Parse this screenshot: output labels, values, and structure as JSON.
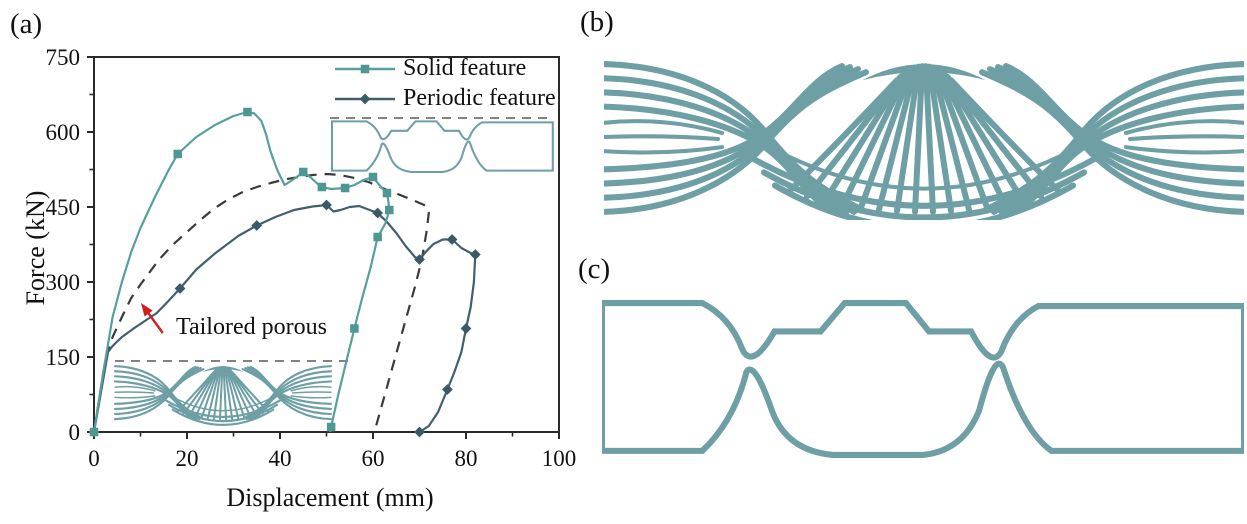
{
  "panels": {
    "a": {
      "label": "(a)"
    },
    "b": {
      "label": "(b)"
    },
    "c": {
      "label": "(c)"
    }
  },
  "colors": {
    "solid_line": "#55a09c",
    "solid_marker": "#4f9793",
    "periodic_line": "#40606d",
    "periodic_marker": "#3a5a67",
    "porous_dash": "#3b3b3b",
    "structure": "#6e9fa5",
    "arrow_red": "#cf1f1f",
    "axis": "#2a2a2a",
    "text": "#111111"
  },
  "chart_data": {
    "type": "line",
    "title": "",
    "xlabel": "Displacement (mm)",
    "ylabel": "Force (kN)",
    "xlim": [
      0,
      100
    ],
    "ylim": [
      0,
      750
    ],
    "x_ticks": [
      0,
      20,
      40,
      60,
      80,
      100
    ],
    "x_minor_ticks": [
      10,
      30,
      50,
      70,
      90
    ],
    "y_ticks": [
      0,
      150,
      300,
      450,
      600,
      750
    ],
    "y_minor_ticks": [
      75,
      225,
      375,
      525,
      675
    ],
    "grid": false,
    "legend_position": "top-right-inside",
    "series": [
      {
        "name": "Solid feature",
        "color": "#55a09c",
        "marker": "square",
        "marker_color": "#4f9793",
        "dashed": false,
        "points": [
          [
            0,
            0
          ],
          [
            2,
            120
          ],
          [
            4,
            230
          ],
          [
            6,
            300
          ],
          [
            8,
            360
          ],
          [
            10,
            408
          ],
          [
            13,
            468
          ],
          [
            16,
            523
          ],
          [
            18,
            556
          ],
          [
            22,
            590
          ],
          [
            26,
            614
          ],
          [
            30,
            632
          ],
          [
            33,
            640
          ],
          [
            34.5,
            637
          ],
          [
            36,
            622
          ],
          [
            37,
            595
          ],
          [
            38,
            560
          ],
          [
            39.5,
            522
          ],
          [
            41,
            494
          ],
          [
            43,
            506
          ],
          [
            45,
            520
          ],
          [
            46.5,
            510
          ],
          [
            48,
            497
          ],
          [
            49,
            490
          ],
          [
            51,
            486
          ],
          [
            54,
            488
          ],
          [
            56,
            494
          ],
          [
            58,
            504
          ],
          [
            60,
            510
          ],
          [
            61,
            498
          ],
          [
            62,
            487
          ],
          [
            63,
            478
          ],
          [
            63.3,
            462
          ],
          [
            63.5,
            444
          ],
          [
            62.7,
            418
          ],
          [
            61,
            390
          ],
          [
            59.5,
            330
          ],
          [
            57.5,
            262
          ],
          [
            56,
            207
          ],
          [
            54.5,
            150
          ],
          [
            52.5,
            73
          ],
          [
            51,
            10
          ],
          [
            50.8,
            0
          ]
        ],
        "marker_points": [
          [
            0,
            0
          ],
          [
            18,
            556
          ],
          [
            33,
            640
          ],
          [
            45,
            520
          ],
          [
            49,
            490
          ],
          [
            54,
            488
          ],
          [
            60,
            510
          ],
          [
            63,
            478
          ],
          [
            63.5,
            444
          ],
          [
            61,
            390
          ],
          [
            56,
            207
          ],
          [
            51,
            10
          ]
        ]
      },
      {
        "name": "Periodic feature",
        "color": "#40606d",
        "marker": "diamond",
        "marker_color": "#3a5a67",
        "dashed": false,
        "points": [
          [
            0,
            0
          ],
          [
            1.5,
            80
          ],
          [
            3,
            160
          ],
          [
            4,
            172
          ],
          [
            6,
            190
          ],
          [
            9,
            210
          ],
          [
            13.5,
            238
          ],
          [
            16,
            262
          ],
          [
            18.5,
            287
          ],
          [
            22,
            325
          ],
          [
            26,
            357
          ],
          [
            31,
            392
          ],
          [
            35,
            413
          ],
          [
            39,
            430
          ],
          [
            43,
            444
          ],
          [
            47,
            451
          ],
          [
            50,
            454
          ],
          [
            51.5,
            441
          ],
          [
            53,
            444
          ],
          [
            55,
            450
          ],
          [
            57,
            452
          ],
          [
            59,
            445
          ],
          [
            61,
            438
          ],
          [
            63,
            420
          ],
          [
            65,
            398
          ],
          [
            67,
            372
          ],
          [
            69,
            350
          ],
          [
            70,
            345
          ],
          [
            71.5,
            362
          ],
          [
            73,
            376
          ],
          [
            75,
            385
          ],
          [
            77,
            385
          ],
          [
            79,
            368
          ],
          [
            81,
            358
          ],
          [
            82,
            355
          ],
          [
            81.7,
            300
          ],
          [
            81,
            250
          ],
          [
            80,
            207
          ],
          [
            79,
            160
          ],
          [
            77.5,
            120
          ],
          [
            76,
            85
          ],
          [
            74,
            40
          ],
          [
            72,
            12
          ],
          [
            70,
            0
          ]
        ],
        "marker_points": [
          [
            0,
            0
          ],
          [
            18.5,
            287
          ],
          [
            35,
            413
          ],
          [
            50,
            454
          ],
          [
            61,
            438
          ],
          [
            70,
            345
          ],
          [
            77,
            385
          ],
          [
            82,
            355
          ],
          [
            80,
            207
          ],
          [
            76,
            85
          ],
          [
            70,
            0
          ]
        ]
      },
      {
        "name": "Tailored porous",
        "color": "#3b3b3b",
        "marker": "none",
        "marker_color": "#3b3b3b",
        "dashed": true,
        "in_legend": false,
        "points": [
          [
            0,
            0
          ],
          [
            1,
            60
          ],
          [
            2,
            120
          ],
          [
            3,
            160
          ],
          [
            4,
            190
          ],
          [
            6,
            230
          ],
          [
            8,
            268
          ],
          [
            10,
            295
          ],
          [
            12,
            320
          ],
          [
            14,
            345
          ],
          [
            17,
            375
          ],
          [
            20,
            400
          ],
          [
            23,
            425
          ],
          [
            26,
            448
          ],
          [
            29,
            466
          ],
          [
            32,
            480
          ],
          [
            35,
            490
          ],
          [
            38,
            498
          ],
          [
            41,
            505
          ],
          [
            44,
            510
          ],
          [
            47,
            514
          ],
          [
            50,
            516
          ],
          [
            53,
            514
          ],
          [
            56,
            508
          ],
          [
            59,
            500
          ],
          [
            62,
            488
          ],
          [
            65,
            477
          ],
          [
            68,
            466
          ],
          [
            70,
            458
          ],
          [
            71.5,
            452
          ],
          [
            72,
            438
          ],
          [
            71.5,
            400
          ],
          [
            70.5,
            345
          ],
          [
            69,
            290
          ],
          [
            67.5,
            240
          ],
          [
            66,
            190
          ],
          [
            64.5,
            140
          ],
          [
            63,
            90
          ],
          [
            61.5,
            40
          ],
          [
            60.3,
            0
          ]
        ],
        "marker_points": []
      }
    ],
    "annotation": {
      "text": "Tailored porous",
      "arrow_tail_data": [
        14.8,
        198
      ],
      "arrow_head_data": [
        10.1,
        258
      ],
      "color": "#cf1f1f"
    },
    "insets": [
      {
        "position": "lower-left",
        "content": "fan-lattice-structure"
      },
      {
        "position": "upper-right",
        "content": "mesh-lattice-structure"
      }
    ]
  }
}
